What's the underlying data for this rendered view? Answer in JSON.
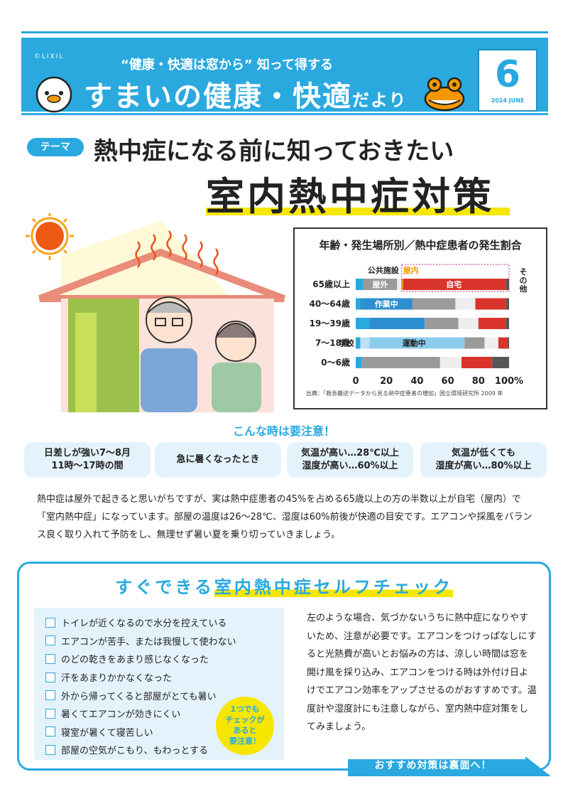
{
  "header": {
    "copyright": "©LIXIL",
    "subtitle": "“健康・快適は窓から” 知って得する",
    "title_main": "すまいの健康・快適",
    "title_small": "だより",
    "issue_number": "6",
    "issue_date": "2024 JUNE"
  },
  "theme": {
    "tag": "テーマ",
    "line1": "熱中症になる前に知っておきたい",
    "line2": "室内熱中症対策"
  },
  "chart": {
    "title": "年齢・発生場所別／熱中症患者の発生割合",
    "source": "出典：「救急搬送データから見る熱中症患者の増加」国立環境研究所 2009 年",
    "annotations": {
      "public": "公共施設",
      "indoor": "屋内",
      "other": "その他",
      "outdoor": "屋外",
      "home": "自宅",
      "work": "作業中",
      "school": "学校",
      "sports": "運動中"
    },
    "unit": "%"
  },
  "chart_data": {
    "type": "bar",
    "orientation": "horizontal-stacked",
    "title": "年齢・発生場所別／熱中症患者の発生割合",
    "categories": [
      "65歳以上",
      "40〜64歳",
      "19〜39歳",
      "7〜18歳",
      "0〜6歳"
    ],
    "xlim": [
      0,
      100
    ],
    "xticks": [
      0,
      20,
      40,
      60,
      80,
      100
    ],
    "segments": [
      {
        "name": "屋外(その他)",
        "color": "#29a9df",
        "values": [
          5,
          3,
          9,
          3,
          4
        ]
      },
      {
        "name": "作業中",
        "color": "#2e8fd0",
        "values": [
          0,
          34,
          36,
          0,
          0
        ]
      },
      {
        "name": "学校",
        "color": "#bde1f4",
        "values": [
          0,
          0,
          0,
          6,
          0
        ]
      },
      {
        "name": "運動中",
        "color": "#8ccdee",
        "values": [
          0,
          0,
          0,
          62,
          0
        ]
      },
      {
        "name": "屋外",
        "color": "#9a9a9a",
        "values": [
          22,
          28,
          22,
          13,
          51
        ]
      },
      {
        "name": "公共施設",
        "color": "#eeeeee",
        "values": [
          3,
          13,
          13,
          9,
          14
        ]
      },
      {
        "name": "屋内その他",
        "color": "#f39800",
        "values": [
          1,
          0,
          0,
          0,
          0
        ]
      },
      {
        "name": "自宅",
        "color": "#d9342b",
        "values": [
          67,
          20,
          18,
          6,
          20
        ]
      },
      {
        "name": "その他",
        "color": "#555555",
        "values": [
          2,
          2,
          2,
          1,
          11
        ]
      }
    ]
  },
  "caution": {
    "title": "こんな時は要注意！",
    "items": [
      "日差しが強い7〜8月\n11時〜17時の間",
      "急に暑くなったとき",
      "気温が高い…28℃以上\n湿度が高い…60%以上",
      "気温が低くても\n湿度が高い…80%以上"
    ]
  },
  "body": "熱中症は屋外で起きると思いがちですが、実は熱中症患者の45%を占める65歳以上の方の半数以上が自宅（屋内）で「室内熱中症」になっています。部屋の温度は26〜28℃、湿度は60%前後が快適の目安です。エアコンや採風をバランス良く取り入れて予防をし、無理せず暑い夏を乗り切っていきましょう。",
  "selfcheck": {
    "title_prefix": "すぐできる",
    "title_highlight": "室内熱中症セルフチェック",
    "items": [
      "トイレが近くなるので水分を控えている",
      "エアコンが苦手、または我慢して使わない",
      "のどの乾きをあまり感じなくなった",
      "汗をあまりかかなくなった",
      "外から帰ってくると部屋がとても暑い",
      "暑くてエアコンが効きにくい",
      "寝室が暑くて寝苦しい",
      "部屋の空気がこもり、もわっとする"
    ],
    "badge": "1つでも\nチェックが\nあると\n要注意！",
    "text": "左のような場合、気づかないうちに熱中症になりやすいため、注意が必要です。エアコンをつけっぱなしにすると光熱費が高いとお悩みの方は、涼しい時間は窓を開け風を採り込み、エアコンをつける時は外付け日よけでエアコン効率をアップさせるのがおすすめです。温度計や湿度計にも注意しながら、室内熱中症対策をしてみましょう。",
    "next": "おすすめ対策は裏面へ！"
  },
  "colors": {
    "brand_blue": "#29a9df",
    "highlight_yellow": "#f7e600",
    "home_red": "#d9342b"
  }
}
